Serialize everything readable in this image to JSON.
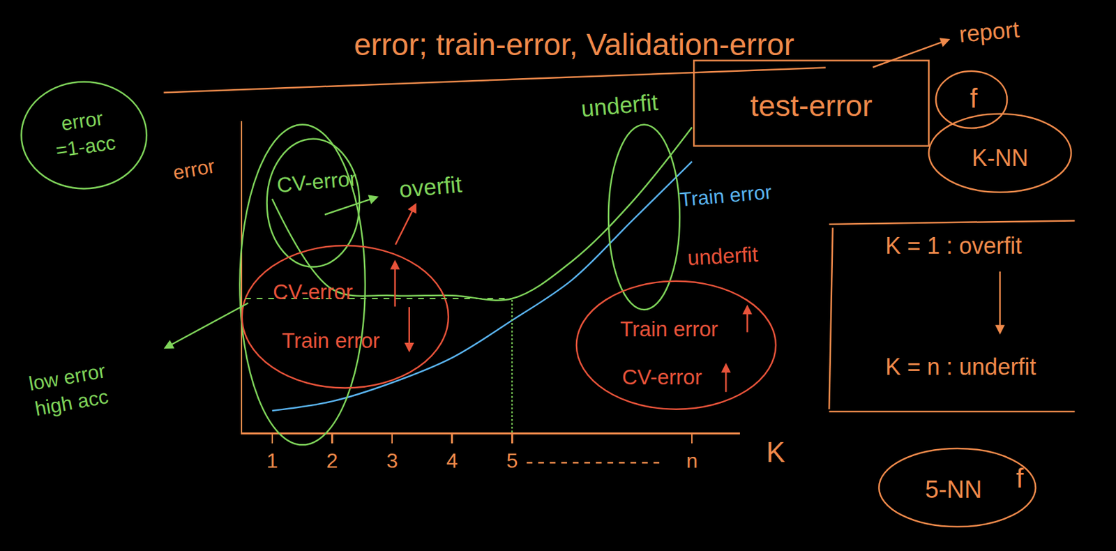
{
  "chart_data": {
    "type": "line",
    "title": "error; train-error, Validation-error",
    "x_label": "K",
    "y_label": "error",
    "categories": [
      "1",
      "2",
      "3",
      "4",
      "5",
      null,
      null,
      "n"
    ],
    "series": [
      {
        "name": "CV-error",
        "color": "#7fd45a",
        "values": [
          7.5,
          4.6,
          4.4,
          4.4,
          4.3,
          5.5,
          7.4,
          9.8
        ]
      },
      {
        "name": "Train error",
        "color": "#5ab4f0",
        "values": [
          0.7,
          1.0,
          1.6,
          2.4,
          3.6,
          4.9,
          6.8,
          8.7
        ]
      }
    ],
    "ylim": [
      0,
      10
    ],
    "grid": false,
    "tick_labels": "x",
    "axis_color": "#f08a4b",
    "annotations": [
      {
        "text": "error\n=1-acc",
        "color": "#7fd45a"
      },
      {
        "text": "overfit",
        "color": "#7fd45a"
      },
      {
        "text": "CV-error",
        "color": "#e8533a"
      },
      {
        "text": "Train error",
        "color": "#e8533a"
      },
      {
        "text": "low error\nhigh acc",
        "color": "#7fd45a"
      },
      {
        "text": "underfit",
        "color": "#7fd45a"
      },
      {
        "text": "test-error",
        "color": "#f08a4b"
      },
      {
        "text": "report",
        "color": "#f08a4b"
      },
      {
        "text": "f",
        "color": "#f08a4b"
      },
      {
        "text": "K-NN",
        "color": "#f08a4b"
      },
      {
        "text": "underfit",
        "color": "#e8533a"
      },
      {
        "text": "Train error",
        "color": "#e8533a"
      },
      {
        "text": "CV-error",
        "color": "#e8533a"
      },
      {
        "text": "K = 1 : overfit",
        "color": "#f08a4b"
      },
      {
        "text": "K = n : underfit",
        "color": "#f08a4b"
      },
      {
        "text": "5-NN",
        "color": "#f08a4b"
      },
      {
        "text": "f",
        "color": "#f08a4b"
      }
    ]
  }
}
